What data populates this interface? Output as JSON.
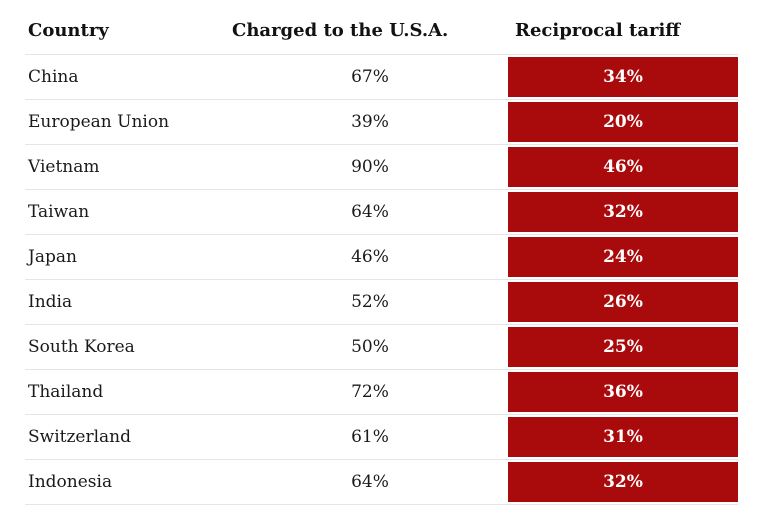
{
  "table": {
    "headers": {
      "country": "Country",
      "charged": "Charged to the U.S.A.",
      "tariff": "Reciprocal tariff"
    },
    "rows": [
      {
        "country": "China",
        "charged": "67%",
        "tariff": "34%"
      },
      {
        "country": "European Union",
        "charged": "39%",
        "tariff": "20%"
      },
      {
        "country": "Vietnam",
        "charged": "90%",
        "tariff": "46%"
      },
      {
        "country": "Taiwan",
        "charged": "64%",
        "tariff": "32%"
      },
      {
        "country": "Japan",
        "charged": "46%",
        "tariff": "24%"
      },
      {
        "country": "India",
        "charged": "52%",
        "tariff": "26%"
      },
      {
        "country": "South Korea",
        "charged": "50%",
        "tariff": "25%"
      },
      {
        "country": "Thailand",
        "charged": "72%",
        "tariff": "36%"
      },
      {
        "country": "Switzerland",
        "charged": "61%",
        "tariff": "31%"
      },
      {
        "country": "Indonesia",
        "charged": "64%",
        "tariff": "32%"
      }
    ]
  },
  "colors": {
    "tariff_cell_bg": "#a90a0b",
    "tariff_cell_text": "#ffffff",
    "row_border": "#e5e5e5",
    "text": "#1a1a1a",
    "header_text": "#121212",
    "background": "#ffffff"
  },
  "chart_data": {
    "type": "table",
    "columns": [
      "Country",
      "Charged to the U.S.A.",
      "Reciprocal tariff"
    ],
    "rows": [
      [
        "China",
        "67%",
        "34%"
      ],
      [
        "European Union",
        "39%",
        "20%"
      ],
      [
        "Vietnam",
        "90%",
        "46%"
      ],
      [
        "Taiwan",
        "64%",
        "32%"
      ],
      [
        "Japan",
        "46%",
        "24%"
      ],
      [
        "India",
        "52%",
        "26%"
      ],
      [
        "South Korea",
        "50%",
        "25%"
      ],
      [
        "Thailand",
        "72%",
        "36%"
      ],
      [
        "Switzerland",
        "61%",
        "31%"
      ],
      [
        "Indonesia",
        "64%",
        "32%"
      ]
    ],
    "categories": [
      "China",
      "European Union",
      "Vietnam",
      "Taiwan",
      "Japan",
      "India",
      "South Korea",
      "Thailand",
      "Switzerland",
      "Indonesia"
    ],
    "series": [
      {
        "name": "Charged to the U.S.A.",
        "values": [
          67,
          39,
          90,
          64,
          46,
          52,
          50,
          72,
          61,
          64
        ],
        "unit": "%"
      },
      {
        "name": "Reciprocal tariff",
        "values": [
          34,
          20,
          46,
          32,
          24,
          26,
          25,
          36,
          31,
          32
        ],
        "unit": "%"
      }
    ],
    "legend_position": "none",
    "grid": "horizontal-row-dividers",
    "highlight": "reciprocal-tariff-column-red"
  }
}
